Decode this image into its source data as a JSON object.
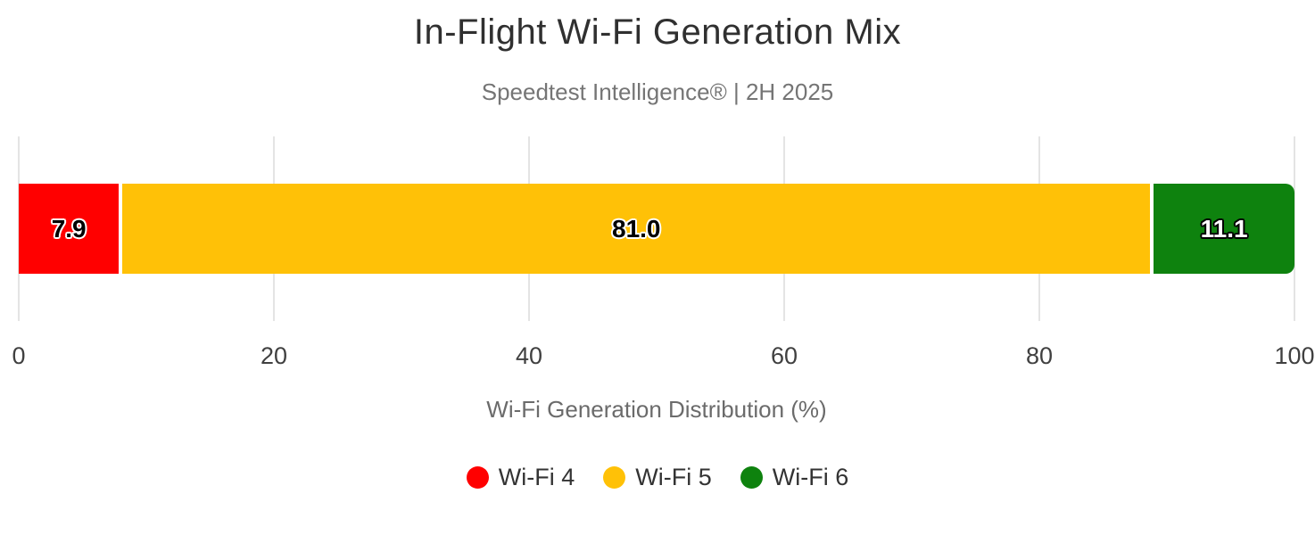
{
  "chart_data": {
    "type": "bar",
    "variant": "horizontal-stacked-single-bar",
    "title": "In-Flight Wi-Fi Generation Mix",
    "subtitle": "Speedtest Intelligence® | 2H 2025",
    "xlabel": "Wi-Fi Generation Distribution (%)",
    "xlim": [
      0,
      100
    ],
    "xticks": [
      "0",
      "20",
      "40",
      "60",
      "80",
      "100"
    ],
    "grid": "vertical-on",
    "legend_position": "bottom",
    "categories": [
      "Wi-Fi 4",
      "Wi-Fi 5",
      "Wi-Fi 6"
    ],
    "series": [
      {
        "name": "Wi-Fi 4",
        "value": 7.9,
        "label": "7.9",
        "color": "#ff0000",
        "label_color": "#000000",
        "label_outline": "#ffffff"
      },
      {
        "name": "Wi-Fi 5",
        "value": 81.0,
        "label": "81.0",
        "color": "#ffc107",
        "label_color": "#000000",
        "label_outline": "#ffffff"
      },
      {
        "name": "Wi-Fi 6",
        "value": 11.1,
        "label": "11.1",
        "color": "#0e820e",
        "label_color": "#ffffff",
        "label_outline": "#000000"
      }
    ],
    "gridline_color": "#e4e4e4"
  }
}
